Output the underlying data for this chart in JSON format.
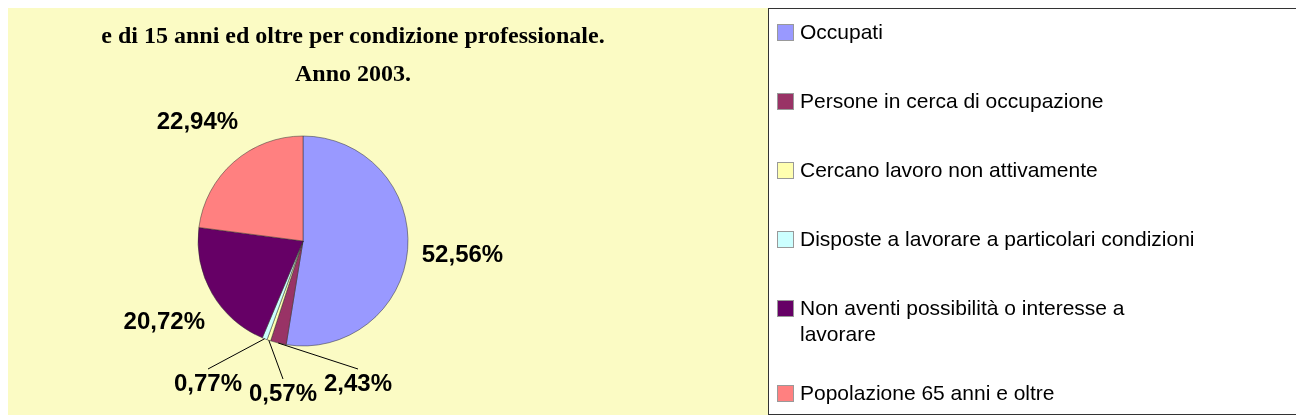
{
  "chart_data": {
    "type": "pie",
    "title": "e di 15 anni ed oltre per condizione professionale. Anno 2003.",
    "categories": [
      "Occupati",
      "Persone in cerca di occupazione",
      "Cercano lavoro non attivamente",
      "Disposte a lavorare a particolari condizioni",
      "Non aventi possibilità o interesse a lavorare",
      "Popolazione 65 anni e oltre"
    ],
    "values": [
      52.56,
      2.43,
      0.57,
      0.77,
      20.72,
      22.94
    ],
    "colors": [
      "#9999ff",
      "#993366",
      "#ffffb0",
      "#ccffff",
      "#660066",
      "#ff8080"
    ],
    "value_labels": [
      "52,56%",
      "2,43%",
      "0,57%",
      "0,77%",
      "20,72%",
      "22,94%"
    ],
    "legend": "right"
  }
}
